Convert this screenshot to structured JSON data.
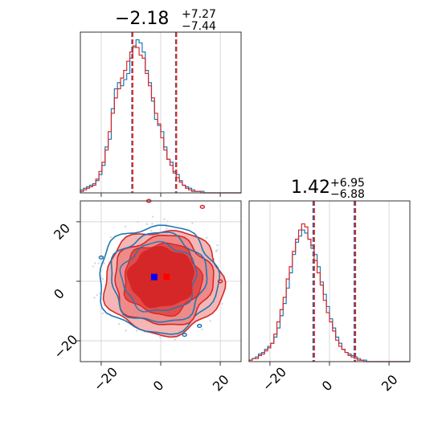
{
  "chart_data": {
    "type": "corner",
    "colors": {
      "series_a": "#1f77b4",
      "series_b": "#d62728",
      "marker_a": "#0000ff",
      "marker_b": "#ff0000"
    },
    "grid": true,
    "parameters": [
      {
        "title_value": "−2.18",
        "title_plus": "+7.27",
        "title_minus": "−7.44"
      },
      {
        "title_value": "1.42",
        "title_plus": "+6.95",
        "title_minus": "−6.88"
      }
    ],
    "axis_range": [
      -27,
      27
    ],
    "ticks": [
      -20,
      0,
      20
    ],
    "tick_labels": [
      "−20",
      "0",
      "20"
    ],
    "hist_top": {
      "bin_edges": [
        -27,
        25
      ],
      "bin_width": 1,
      "series_a": [
        0.02,
        0.03,
        0.04,
        0.05,
        0.06,
        0.08,
        0.12,
        0.18,
        0.3,
        0.35,
        0.55,
        0.68,
        0.72,
        0.7,
        0.74,
        0.78,
        0.88,
        0.95,
        1.0,
        0.98,
        0.92,
        0.8,
        0.72,
        0.6,
        0.48,
        0.44,
        0.4,
        0.3,
        0.22,
        0.2,
        0.14,
        0.12,
        0.08,
        0.05,
        0.04,
        0.03,
        0.02,
        0.01,
        0.01,
        0.01,
        0.0,
        0.0,
        0.0,
        0.0,
        0.0,
        0.0,
        0.0,
        0.0,
        0.0,
        0.0,
        0.0,
        0.0
      ],
      "series_b": [
        0.01,
        0.02,
        0.03,
        0.04,
        0.05,
        0.09,
        0.14,
        0.2,
        0.28,
        0.4,
        0.52,
        0.62,
        0.68,
        0.75,
        0.8,
        0.86,
        0.92,
        0.96,
        0.95,
        0.9,
        0.88,
        0.78,
        0.7,
        0.62,
        0.52,
        0.45,
        0.36,
        0.28,
        0.22,
        0.18,
        0.13,
        0.1,
        0.07,
        0.05,
        0.03,
        0.02,
        0.01,
        0.01,
        0.01,
        0.0,
        0.0,
        0.0,
        0.0,
        0.0,
        0.0,
        0.0,
        0.0,
        0.0,
        0.0,
        0.0,
        0.0,
        0.0
      ],
      "quantiles_a": [
        -9.62,
        5.09
      ],
      "quantiles_b": [
        -9.62,
        5.09
      ]
    },
    "hist_right": {
      "series_a": [
        0.01,
        0.02,
        0.03,
        0.05,
        0.06,
        0.08,
        0.1,
        0.12,
        0.16,
        0.22,
        0.3,
        0.38,
        0.48,
        0.58,
        0.7,
        0.78,
        0.82,
        0.86,
        0.84,
        0.8,
        0.74,
        0.7,
        0.62,
        0.52,
        0.44,
        0.36,
        0.28,
        0.22,
        0.16,
        0.12,
        0.08,
        0.06,
        0.05,
        0.04,
        0.03,
        0.02,
        0.01,
        0.01,
        0.0,
        0.0,
        0.0,
        0.0,
        0.0,
        0.0,
        0.0,
        0.0,
        0.0,
        0.0,
        0.0,
        0.0,
        0.0,
        0.0
      ],
      "series_b": [
        0.01,
        0.02,
        0.02,
        0.04,
        0.05,
        0.07,
        0.09,
        0.12,
        0.18,
        0.26,
        0.34,
        0.42,
        0.54,
        0.62,
        0.72,
        0.8,
        0.86,
        0.9,
        0.88,
        0.8,
        0.76,
        0.66,
        0.58,
        0.5,
        0.4,
        0.32,
        0.26,
        0.2,
        0.14,
        0.1,
        0.08,
        0.06,
        0.04,
        0.03,
        0.02,
        0.01,
        0.01,
        0.0,
        0.0,
        0.0,
        0.0,
        0.0,
        0.0,
        0.0,
        0.0,
        0.0,
        0.0,
        0.0,
        0.0,
        0.0,
        0.0,
        0.0
      ],
      "quantiles_a": [
        -5.46,
        8.37
      ],
      "quantiles_b": [
        -5.46,
        8.37
      ]
    },
    "scatter_center_a": [
      -2.18,
      1.42
    ],
    "scatter_center_b": [
      2.0,
      1.5
    ]
  }
}
